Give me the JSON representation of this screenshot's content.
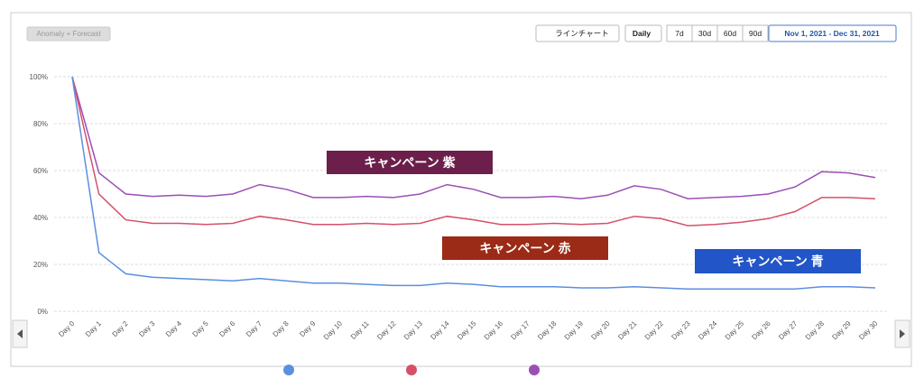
{
  "toolbar": {
    "mode": "Anomaly + Forecast",
    "chart_type": "ラインチャート",
    "interval": "Daily",
    "ranges": [
      "7d",
      "30d",
      "60d",
      "90d"
    ],
    "date_range": "Nov 1, 2021 - Dec 31, 2021"
  },
  "chart_data": {
    "type": "line",
    "categories": [
      "Day 0",
      "Day 1",
      "Day 2",
      "Day 3",
      "Day 4",
      "Day 5",
      "Day 6",
      "Day 7",
      "Day 8",
      "Day 9",
      "Day 10",
      "Day 11",
      "Day 12",
      "Day 13",
      "Day 14",
      "Day 15",
      "Day 16",
      "Day 17",
      "Day 18",
      "Day 19",
      "Day 20",
      "Day 21",
      "Day 22",
      "Day 23",
      "Day 24",
      "Day 25",
      "Day 26",
      "Day 27",
      "Day 28",
      "Day 29",
      "Day 30"
    ],
    "series": [
      {
        "name": "キャンペーン 紫",
        "color": "#9b4fb5",
        "label_color": "#6b1f4a",
        "values": [
          100,
          59,
          50,
          49,
          49.5,
          49,
          50,
          54,
          52,
          48.5,
          48.5,
          49,
          48.5,
          50,
          54,
          52,
          48.5,
          48.5,
          49,
          48,
          49.5,
          53.5,
          52,
          48,
          48.5,
          49,
          50,
          53,
          59.5,
          59,
          57
        ]
      },
      {
        "name": "キャンペーン 赤",
        "color": "#d6506a",
        "label_color": "#9b2a16",
        "values": [
          100,
          50,
          39,
          37.5,
          37.5,
          37,
          37.5,
          40.5,
          39,
          37,
          37,
          37.5,
          37,
          37.5,
          40.5,
          39,
          37,
          37,
          37.5,
          37,
          37.5,
          40.5,
          39.5,
          36.5,
          37,
          38,
          39.5,
          42.5,
          48.5,
          48.5,
          48
        ]
      },
      {
        "name": "キャンペーン 青",
        "color": "#5b8fe0",
        "label_color": "#2255c8",
        "values": [
          100,
          25,
          16,
          14.5,
          14,
          13.5,
          13,
          14,
          13,
          12,
          12,
          11.5,
          11,
          11,
          12,
          11.5,
          10.5,
          10.5,
          10.5,
          10,
          10,
          10.5,
          10,
          9.5,
          9.5,
          9.5,
          9.5,
          9.5,
          10.5,
          10.5,
          10
        ]
      }
    ],
    "ylim": [
      0,
      100
    ],
    "yticks": [
      {
        "value": 0,
        "label": "0%"
      },
      {
        "value": 20,
        "label": "20%"
      },
      {
        "value": 40,
        "label": "40%"
      },
      {
        "value": 60,
        "label": "60%"
      },
      {
        "value": 80,
        "label": "80%"
      },
      {
        "value": 100,
        "label": "100%"
      }
    ],
    "grid": true
  }
}
